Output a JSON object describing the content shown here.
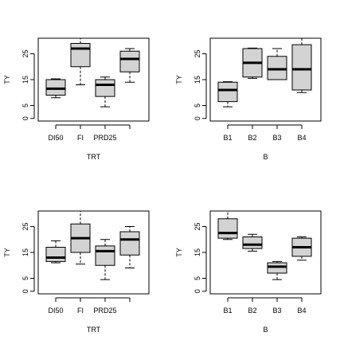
{
  "chart_data": [
    {
      "type": "box",
      "xlabel": "TRT",
      "ylabel": "TY",
      "ylim": [
        -1,
        31
      ],
      "yticks": [
        0,
        5,
        15,
        25
      ],
      "categories": [
        "DI50",
        "FI",
        "PRD25",
        ""
      ],
      "boxes": [
        {
          "whisker_low": 8,
          "q1": 9,
          "median": 11.5,
          "q3": 15,
          "whisker_high": 15.3
        },
        {
          "whisker_low": 13,
          "q1": 20,
          "median": 27,
          "q3": 29,
          "whisker_high": 31
        },
        {
          "whisker_low": 4.5,
          "q1": 8.5,
          "median": 13,
          "q3": 15,
          "whisker_high": 16
        },
        {
          "whisker_low": 14,
          "q1": 18,
          "median": 23,
          "q3": 26,
          "whisker_high": 27
        }
      ]
    },
    {
      "type": "box",
      "xlabel": "B",
      "ylabel": "TY",
      "ylim": [
        -1,
        31
      ],
      "yticks": [
        0,
        5,
        15,
        25
      ],
      "categories": [
        "B1",
        "B2",
        "B3",
        "B4"
      ],
      "boxes": [
        {
          "whisker_low": 4.5,
          "q1": 6.5,
          "median": 11,
          "q3": 14,
          "whisker_high": 14.2
        },
        {
          "whisker_low": 15.5,
          "q1": 16,
          "median": 21.5,
          "q3": 27,
          "whisker_high": 27.2
        },
        {
          "whisker_low": 15,
          "q1": 15,
          "median": 19,
          "q3": 24,
          "whisker_high": 27
        },
        {
          "whisker_low": 10,
          "q1": 11,
          "median": 19,
          "q3": 28.5,
          "whisker_high": 31
        }
      ]
    },
    {
      "type": "box",
      "xlabel": "TRT",
      "ylabel": "TY",
      "ylim": [
        -1,
        31
      ],
      "yticks": [
        0,
        5,
        15,
        25
      ],
      "categories": [
        "DI50",
        "FI",
        "PRD25",
        ""
      ],
      "boxes": [
        {
          "whisker_low": 11,
          "q1": 11.5,
          "median": 13,
          "q3": 17,
          "whisker_high": 19.5
        },
        {
          "whisker_low": 10.5,
          "q1": 15,
          "median": 20.5,
          "q3": 26,
          "whisker_high": 31
        },
        {
          "whisker_low": 4.5,
          "q1": 10,
          "median": 15.5,
          "q3": 17.5,
          "whisker_high": 20
        },
        {
          "whisker_low": 9,
          "q1": 14,
          "median": 20,
          "q3": 23,
          "whisker_high": 25
        }
      ]
    },
    {
      "type": "box",
      "xlabel": "B",
      "ylabel": "TY",
      "ylim": [
        -1,
        31
      ],
      "yticks": [
        0,
        5,
        15,
        25
      ],
      "categories": [
        "B1",
        "B2",
        "B3",
        "B4"
      ],
      "boxes": [
        {
          "whisker_low": 20,
          "q1": 20.5,
          "median": 22.5,
          "q3": 28,
          "whisker_high": 31
        },
        {
          "whisker_low": 15.5,
          "q1": 16.5,
          "median": 18,
          "q3": 21,
          "whisker_high": 22
        },
        {
          "whisker_low": 4.5,
          "q1": 7,
          "median": 9.5,
          "q3": 11,
          "whisker_high": 11.5
        },
        {
          "whisker_low": 12,
          "q1": 13.5,
          "median": 17,
          "q3": 20.5,
          "whisker_high": 21
        }
      ]
    }
  ]
}
